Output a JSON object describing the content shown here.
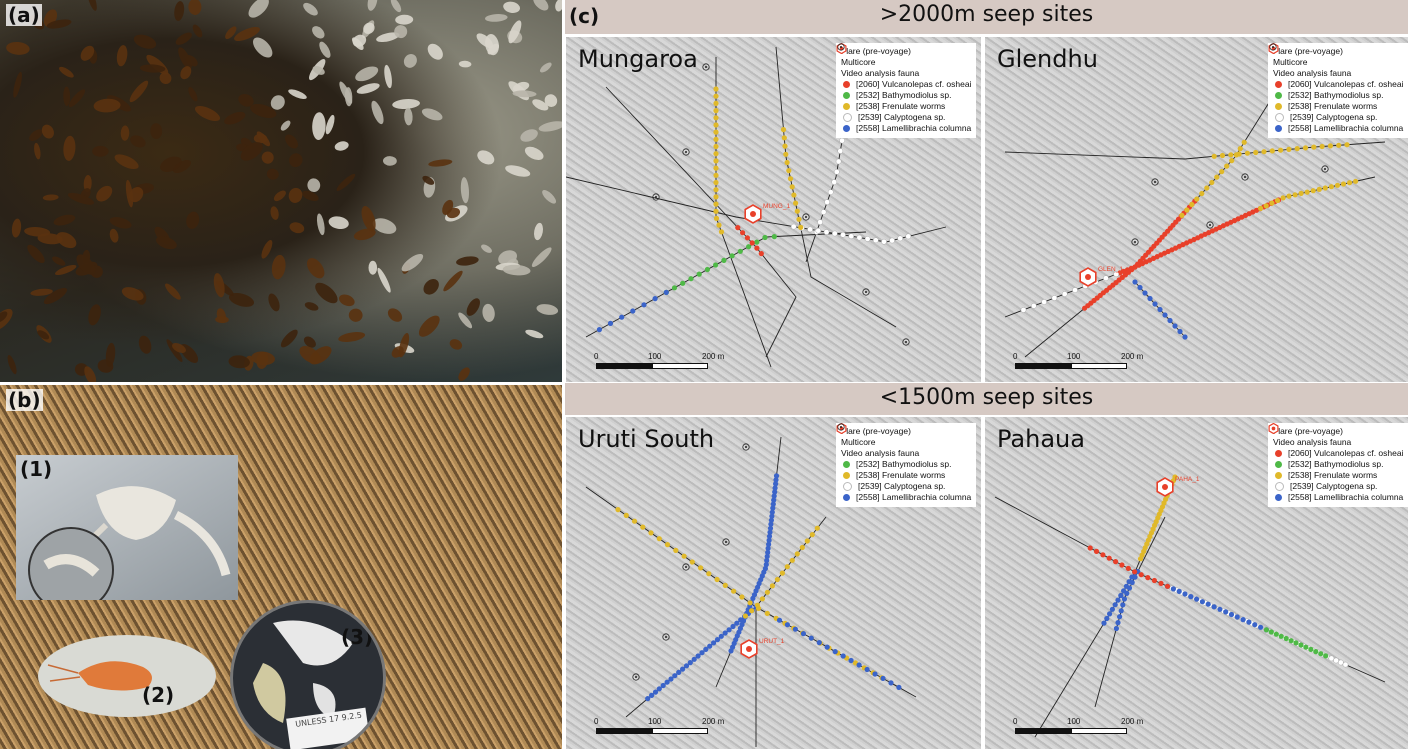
{
  "panel_a": {
    "label": "(a)"
  },
  "panel_b": {
    "label": "(b)",
    "insets": [
      {
        "label": "(1)"
      },
      {
        "label": "(2)"
      },
      {
        "label": "(3)"
      }
    ],
    "jar_label_text": "UNLESS 17 9.2.5"
  },
  "panel_c": {
    "label": "(c)",
    "deep_banner": ">2000m seep sites",
    "shallow_banner": "<1500m seep sites",
    "legend_common": {
      "flare": "Flare (pre-voyage)",
      "multicore": "Multicore",
      "fauna_heading": "Video analysis fauna"
    },
    "colors": {
      "vulcanolepas": "#e8402a",
      "bathymodiolus": "#4fb947",
      "frenulate": "#e0b92a",
      "calyptogena": "#ffffff",
      "lamellibrachia": "#3b64c9",
      "flare": "#e8402a"
    },
    "sites": [
      {
        "name": "Mungaroa",
        "flare_label": "MUNG_1",
        "show_multicore": true,
        "fauna": [
          "[2060] Vulcanolepas cf. osheai",
          "[2532] Bathymodiolus sp.",
          "[2538] Frenulate worms",
          "[2539] Calyptogena sp.",
          "[2558] Lamellibrachia columna"
        ],
        "fauna_keys": [
          "vulcanolepas",
          "bathymodiolus",
          "frenulate",
          "calyptogena",
          "lamellibrachia"
        ],
        "scale": [
          "0",
          "100",
          "200 m"
        ]
      },
      {
        "name": "Glendhu",
        "flare_label": "GLEN_1",
        "show_multicore": true,
        "fauna": [
          "[2060] Vulcanolepas cf. osheai",
          "[2532] Bathymodiolus sp.",
          "[2538] Frenulate worms",
          "[2539] Calyptogena sp.",
          "[2558] Lamellibrachia columna"
        ],
        "fauna_keys": [
          "vulcanolepas",
          "bathymodiolus",
          "frenulate",
          "calyptogena",
          "lamellibrachia"
        ],
        "scale": [
          "0",
          "100",
          "200 m"
        ]
      },
      {
        "name": "Uruti South",
        "flare_label": "URUT_1",
        "show_multicore": true,
        "fauna": [
          "[2532] Bathymodiolus sp.",
          "[2538] Frenulate worms",
          "[2539] Calyptogena sp.",
          "[2558] Lamellibrachia columna"
        ],
        "fauna_keys": [
          "bathymodiolus",
          "frenulate",
          "calyptogena",
          "lamellibrachia"
        ],
        "scale": [
          "0",
          "100",
          "200 m"
        ]
      },
      {
        "name": "Pahaua",
        "flare_label": "PAHA_1",
        "show_multicore": false,
        "fauna": [
          "[2060] Vulcanolepas cf. osheai",
          "[2532] Bathymodiolus sp.",
          "[2538] Frenulate worms",
          "[2539] Calyptogena sp.",
          "[2558] Lamellibrachia columna"
        ],
        "fauna_keys": [
          "vulcanolepas",
          "bathymodiolus",
          "frenulate",
          "calyptogena",
          "lamellibrachia"
        ],
        "scale": [
          "0",
          "100",
          "200 m"
        ]
      }
    ]
  }
}
